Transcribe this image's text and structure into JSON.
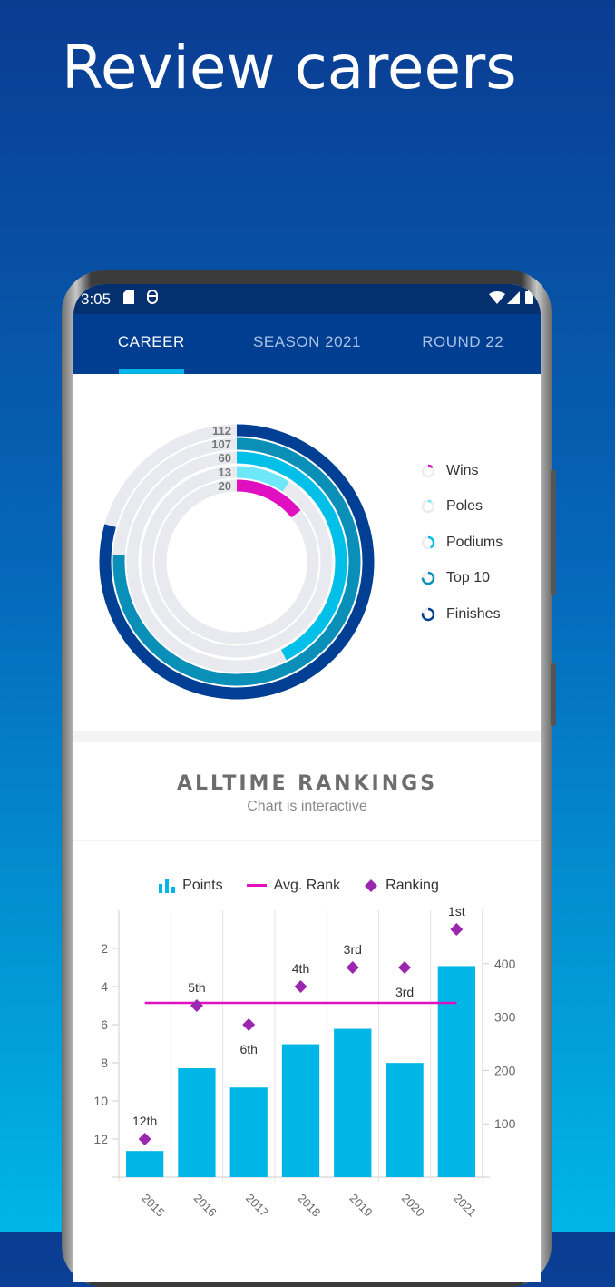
{
  "headline": "Review careers",
  "status_bar": {
    "time": "3:05",
    "icons": [
      "sd-card-icon",
      "app-notification-icon",
      "wifi-icon",
      "signal-icon",
      "battery-icon"
    ]
  },
  "tabs": [
    {
      "label": "CAREER",
      "active": true
    },
    {
      "label": "SEASON 2021",
      "active": false
    },
    {
      "label": "ROUND 22",
      "active": false
    }
  ],
  "career_rings": {
    "rings": [
      {
        "name": "Finishes",
        "value": 112,
        "color": "#003f93"
      },
      {
        "name": "Top 10",
        "value": 107,
        "color": "#0a8fb8"
      },
      {
        "name": "Podiums",
        "value": 60,
        "color": "#00bfe8"
      },
      {
        "name": "Poles",
        "value": 13,
        "color": "#6ee8f8"
      },
      {
        "name": "Wins",
        "value": 20,
        "color": "#e010c0"
      }
    ],
    "legend": [
      "Wins",
      "Poles",
      "Podiums",
      "Top 10",
      "Finishes"
    ]
  },
  "rankings": {
    "title": "ALLTIME RANKINGS",
    "subtitle": "Chart is interactive"
  },
  "chart_data": {
    "type": "bar",
    "categories": [
      "2015",
      "2016",
      "2017",
      "2018",
      "2019",
      "2020",
      "2021"
    ],
    "series": [
      {
        "name": "Points",
        "type": "bar",
        "axis": "right",
        "values": [
          49,
          204,
          168,
          249,
          278,
          214,
          395.5
        ],
        "color": "#00b6e6"
      },
      {
        "name": "Avg. Rank",
        "type": "line",
        "axis": "left",
        "value": 4.86,
        "color": "#e010c0"
      },
      {
        "name": "Ranking",
        "type": "scatter",
        "axis": "left",
        "values": [
          12,
          5,
          6,
          4,
          3,
          3,
          1
        ],
        "labels": [
          "12th",
          "5th",
          "6th",
          "4th",
          "3rd",
          "3rd",
          "1st"
        ],
        "color": "#9b27b0"
      }
    ],
    "left_axis": {
      "ticks": [
        "2",
        "4",
        "6",
        "8",
        "10",
        "12"
      ],
      "range": [
        0,
        14
      ],
      "inverted": true
    },
    "right_axis": {
      "ticks": [
        "100",
        "200",
        "300",
        "400"
      ],
      "range": [
        0,
        500
      ]
    },
    "grid": "vertical",
    "legend_position": "top"
  }
}
